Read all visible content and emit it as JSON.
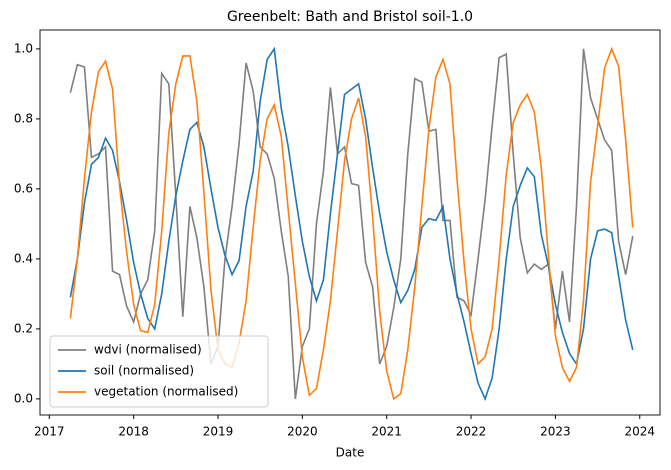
{
  "chart_data": {
    "type": "line",
    "title": "Greenbelt: Bath and Bristol soil-1.0",
    "x_label": "Date",
    "x": [
      2017.25,
      2017.333,
      2017.417,
      2017.5,
      2017.583,
      2017.667,
      2017.75,
      2017.833,
      2017.917,
      2018.0,
      2018.083,
      2018.167,
      2018.25,
      2018.333,
      2018.417,
      2018.5,
      2018.583,
      2018.667,
      2018.75,
      2018.833,
      2018.917,
      2019.0,
      2019.083,
      2019.167,
      2019.25,
      2019.333,
      2019.417,
      2019.5,
      2019.583,
      2019.667,
      2019.75,
      2019.833,
      2019.917,
      2020.0,
      2020.083,
      2020.167,
      2020.25,
      2020.333,
      2020.417,
      2020.5,
      2020.583,
      2020.667,
      2020.75,
      2020.833,
      2020.917,
      2021.0,
      2021.083,
      2021.167,
      2021.25,
      2021.333,
      2021.417,
      2021.5,
      2021.583,
      2021.667,
      2021.75,
      2021.833,
      2021.917,
      2022.0,
      2022.083,
      2022.167,
      2022.25,
      2022.333,
      2022.417,
      2022.5,
      2022.583,
      2022.667,
      2022.75,
      2022.833,
      2022.917,
      2023.0,
      2023.083,
      2023.167,
      2023.25,
      2023.333,
      2023.417,
      2023.5,
      2023.583,
      2023.667,
      2023.75,
      2023.833,
      2023.917
    ],
    "series": [
      {
        "name": "wdvi (normalised)",
        "color": "#7f7f7f",
        "values": [
          0.875,
          0.955,
          0.948,
          0.69,
          0.7,
          0.72,
          0.365,
          0.355,
          0.265,
          0.22,
          0.3,
          0.34,
          0.48,
          0.93,
          0.9,
          0.58,
          0.235,
          0.55,
          0.46,
          0.32,
          0.1,
          0.15,
          0.4,
          0.55,
          0.73,
          0.96,
          0.88,
          0.72,
          0.7,
          0.63,
          0.48,
          0.35,
          0.0,
          0.15,
          0.2,
          0.5,
          0.65,
          0.89,
          0.7,
          0.72,
          0.615,
          0.61,
          0.39,
          0.32,
          0.1,
          0.15,
          0.26,
          0.4,
          0.7,
          0.915,
          0.905,
          0.765,
          0.77,
          0.51,
          0.51,
          0.29,
          0.28,
          0.24,
          0.4,
          0.57,
          0.78,
          0.975,
          0.985,
          0.7,
          0.46,
          0.36,
          0.385,
          0.37,
          0.385,
          0.2,
          0.365,
          0.22,
          0.55,
          1.0,
          0.86,
          0.8,
          0.74,
          0.71,
          0.45,
          0.355,
          0.465
        ]
      },
      {
        "name": "soil (normalised)",
        "color": "#1f77b4",
        "values": [
          0.29,
          0.4,
          0.56,
          0.67,
          0.69,
          0.745,
          0.71,
          0.62,
          0.51,
          0.39,
          0.3,
          0.23,
          0.2,
          0.3,
          0.45,
          0.58,
          0.68,
          0.77,
          0.79,
          0.72,
          0.6,
          0.49,
          0.41,
          0.355,
          0.395,
          0.55,
          0.65,
          0.85,
          0.97,
          1.0,
          0.83,
          0.72,
          0.58,
          0.45,
          0.35,
          0.28,
          0.34,
          0.53,
          0.7,
          0.87,
          0.885,
          0.9,
          0.8,
          0.66,
          0.53,
          0.42,
          0.34,
          0.275,
          0.31,
          0.37,
          0.49,
          0.515,
          0.51,
          0.55,
          0.4,
          0.3,
          0.22,
          0.13,
          0.045,
          0.0,
          0.06,
          0.2,
          0.4,
          0.55,
          0.61,
          0.66,
          0.635,
          0.47,
          0.38,
          0.27,
          0.19,
          0.13,
          0.1,
          0.2,
          0.4,
          0.48,
          0.485,
          0.475,
          0.35,
          0.225,
          0.14
        ]
      },
      {
        "name": "vegetation (normalised)",
        "color": "#ff7f0e",
        "values": [
          0.23,
          0.4,
          0.63,
          0.82,
          0.935,
          0.965,
          0.885,
          0.61,
          0.42,
          0.27,
          0.195,
          0.19,
          0.27,
          0.48,
          0.76,
          0.9,
          0.98,
          0.98,
          0.85,
          0.59,
          0.31,
          0.14,
          0.1,
          0.09,
          0.16,
          0.28,
          0.49,
          0.68,
          0.8,
          0.84,
          0.75,
          0.54,
          0.33,
          0.12,
          0.01,
          0.03,
          0.14,
          0.28,
          0.48,
          0.68,
          0.8,
          0.86,
          0.75,
          0.52,
          0.25,
          0.08,
          0.0,
          0.015,
          0.14,
          0.32,
          0.55,
          0.77,
          0.92,
          0.97,
          0.9,
          0.63,
          0.39,
          0.2,
          0.1,
          0.12,
          0.2,
          0.4,
          0.64,
          0.79,
          0.84,
          0.87,
          0.82,
          0.66,
          0.41,
          0.18,
          0.09,
          0.05,
          0.09,
          0.28,
          0.62,
          0.78,
          0.945,
          1.0,
          0.95,
          0.74,
          0.49
        ]
      }
    ],
    "xlim": [
      2016.89,
      2024.24
    ],
    "xticks": [
      2017,
      2018,
      2019,
      2020,
      2021,
      2022,
      2023,
      2024
    ],
    "ylim": [
      -0.046,
      1.054
    ],
    "yticks": [
      {
        "value": 0,
        "label": "0.0"
      },
      {
        "value": 0.2,
        "label": "0.2"
      },
      {
        "value": 0.4,
        "label": "0.4"
      },
      {
        "value": 0.6,
        "label": "0.6"
      },
      {
        "value": 0.8,
        "label": "0.8"
      },
      {
        "value": 1,
        "label": "1.0"
      }
    ],
    "legend": "lower left"
  }
}
